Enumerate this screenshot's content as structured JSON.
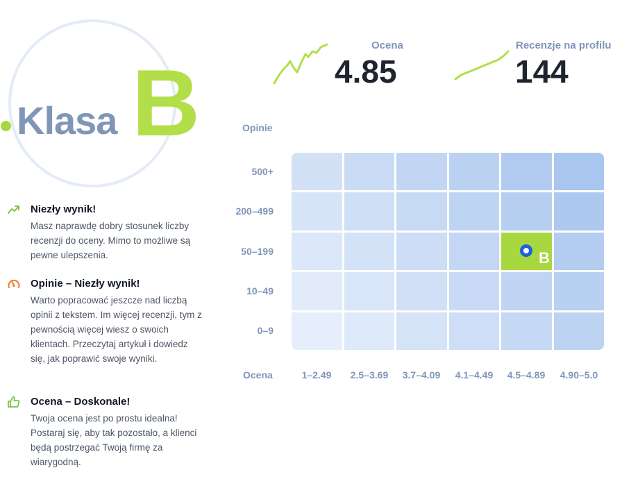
{
  "grade": {
    "label": "Klasa",
    "letter": "B"
  },
  "feedback": [
    {
      "icon": "trending-up-icon",
      "icon_color": "#7cc242",
      "title": "Niezły wynik!",
      "text": "Masz naprawdę dobry stosunek liczby recenzji do oceny. Mimo to możliwe są pewne ulepszenia."
    },
    {
      "icon": "gauge-icon",
      "icon_color": "#f07a2e",
      "title": "Opinie – Niezły wynik!",
      "text": "Warto popracować jeszcze nad liczbą opinii z tekstem. Im więcej recenzji, tym z pewnością więcej wiesz o swoich klientach. Przeczytaj artykuł i dowiedz się, jak poprawić swoje wyniki."
    },
    {
      "icon": "thumbs-up-icon",
      "icon_color": "#7cc242",
      "title": "Ocena – Doskonale!",
      "text": "Twoja ocena jest po prostu idealna! Postaraj się, aby tak pozostało, a klienci będą postrzegać Twoją firmę za wiarygodną."
    }
  ],
  "stats": {
    "rating": {
      "label": "Ocena",
      "value": "4.85"
    },
    "reviews": {
      "label": "Recenzje na profilu",
      "value": "144"
    }
  },
  "matrix": {
    "y_axis_label": "Opinie",
    "x_axis_label": "Ocena",
    "rows": [
      "500+",
      "200–499",
      "50–199",
      "10–49",
      "0–9"
    ],
    "columns": [
      "1–2.49",
      "2.5–3.69",
      "3.7–4.09",
      "4.1–4.49",
      "4.5–4.89",
      "4.90–5.0"
    ],
    "active_cell": {
      "row": 2,
      "col": 4,
      "label": "B"
    },
    "colors": {
      "active": "#a8d83f",
      "marker": "#1d5fe0",
      "cell_light": "#e6eefb",
      "cell_dark": "#a9c6ee"
    }
  }
}
